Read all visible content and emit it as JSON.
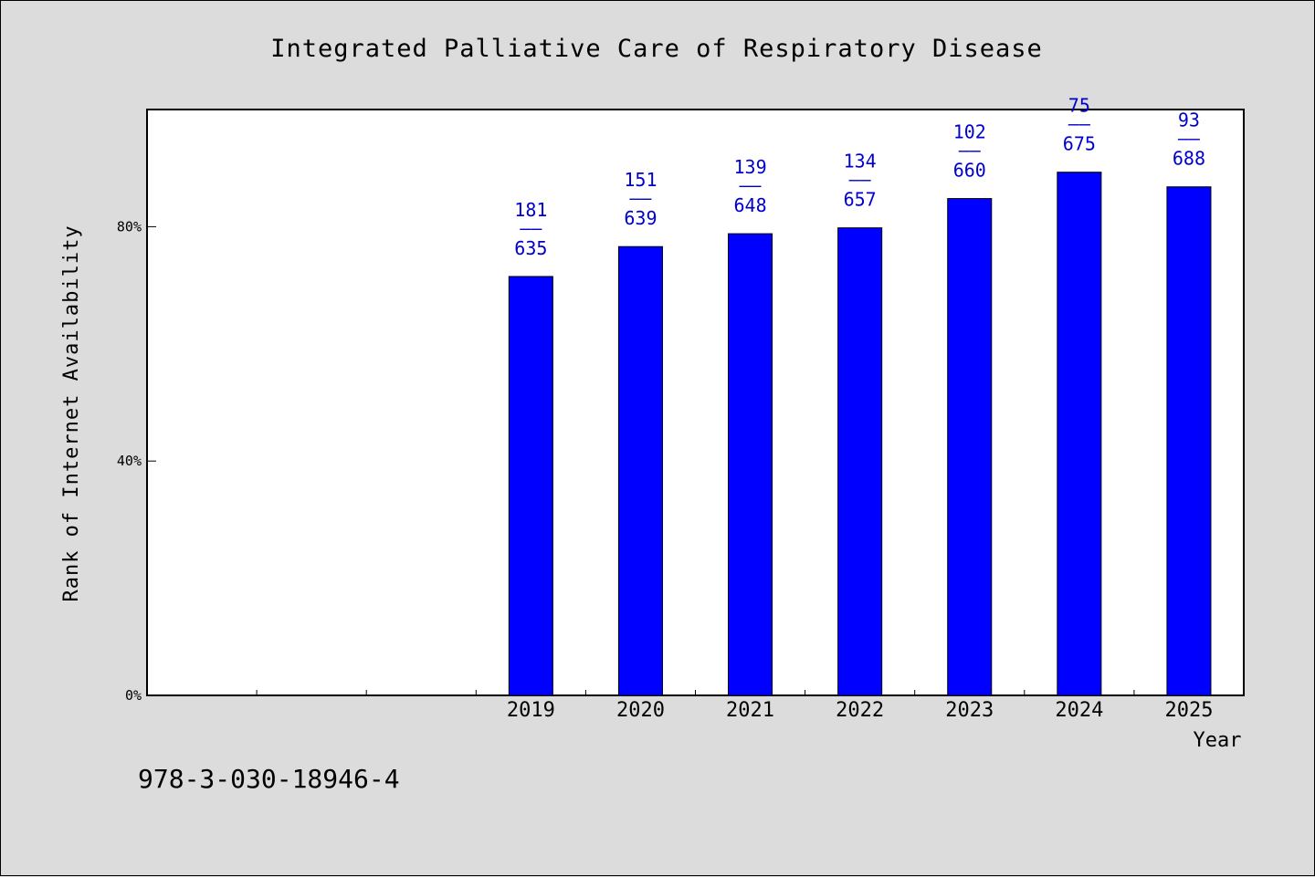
{
  "chart_data": {
    "type": "bar",
    "title": "Integrated Palliative Care of Respiratory Disease",
    "xlabel": "Year",
    "ylabel": "Rank of Internet Availability",
    "categories": [
      "",
      "",
      "",
      "2019",
      "2020",
      "2021",
      "2022",
      "2023",
      "2024",
      "2025"
    ],
    "values": [
      null,
      null,
      null,
      71.5,
      76.6,
      78.8,
      79.8,
      84.8,
      89.3,
      86.8
    ],
    "labels_top": [
      "",
      "",
      "",
      "181",
      "151",
      "139",
      "134",
      "102",
      "75",
      "93"
    ],
    "label_separator": "——",
    "labels_bottom": [
      "",
      "",
      "",
      "635",
      "639",
      "648",
      "657",
      "660",
      "675",
      "688"
    ],
    "yticks": [
      0,
      40,
      80
    ],
    "ytick_labels": [
      "0%",
      "40%",
      "80%"
    ],
    "ylim": [
      0,
      100
    ],
    "grid": false,
    "colors": {
      "bar": "#0000ff",
      "label": "#0000cc",
      "background": "#dcdcdc",
      "plot": "#ffffff"
    }
  },
  "footnote": "978-3-030-18946-4"
}
